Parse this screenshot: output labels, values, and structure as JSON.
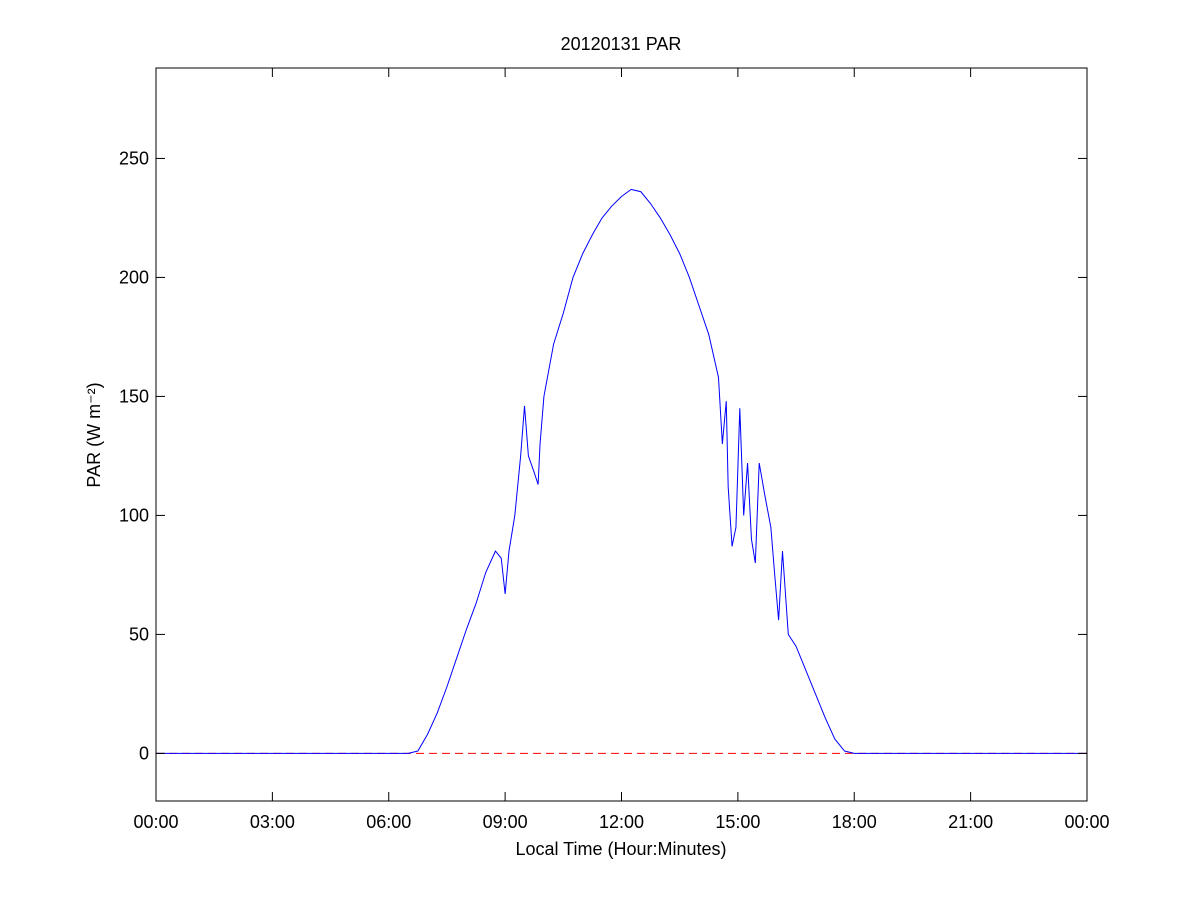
{
  "chart_data": {
    "type": "line",
    "title": "20120131 PAR",
    "xlabel": "Local Time (Hour:Minutes)",
    "ylabel": "PAR (W m⁻²)",
    "x": [
      0,
      6.5,
      6.75,
      7.0,
      7.25,
      7.5,
      7.75,
      8.0,
      8.25,
      8.5,
      8.75,
      8.9,
      9.0,
      9.1,
      9.25,
      9.4,
      9.5,
      9.6,
      9.75,
      9.85,
      9.9,
      10.0,
      10.25,
      10.5,
      10.75,
      11.0,
      11.25,
      11.5,
      11.75,
      12.0,
      12.25,
      12.5,
      12.75,
      13.0,
      13.25,
      13.5,
      13.75,
      14.0,
      14.25,
      14.5,
      14.6,
      14.7,
      14.75,
      14.85,
      14.95,
      15.05,
      15.15,
      15.25,
      15.35,
      15.45,
      15.55,
      15.7,
      15.85,
      15.95,
      16.05,
      16.15,
      16.3,
      16.5,
      16.75,
      17.0,
      17.25,
      17.5,
      17.75,
      18.0,
      24
    ],
    "values": [
      0,
      0,
      1,
      8,
      17,
      28,
      40,
      52,
      63,
      76,
      85,
      82,
      67,
      85,
      100,
      125,
      146,
      125,
      118,
      113,
      130,
      150,
      172,
      185,
      200,
      210,
      218,
      225,
      230,
      234,
      237,
      236,
      231,
      225,
      218,
      210,
      200,
      188,
      176,
      158,
      130,
      148,
      112,
      87,
      95,
      145,
      100,
      122,
      90,
      80,
      122,
      108,
      95,
      75,
      56,
      85,
      50,
      45,
      35,
      25,
      15,
      6,
      1,
      0,
      0
    ],
    "color": "#0000ff",
    "hline": {
      "value": 0,
      "color": "#ff0000"
    },
    "xlim": [
      0,
      24
    ],
    "ylim": [
      -20,
      288
    ],
    "xticks": [
      {
        "value": 0,
        "label": "00:00"
      },
      {
        "value": 3,
        "label": "03:00"
      },
      {
        "value": 6,
        "label": "06:00"
      },
      {
        "value": 9,
        "label": "09:00"
      },
      {
        "value": 12,
        "label": "12:00"
      },
      {
        "value": 15,
        "label": "15:00"
      },
      {
        "value": 18,
        "label": "18:00"
      },
      {
        "value": 21,
        "label": "21:00"
      },
      {
        "value": 24,
        "label": "00:00"
      }
    ],
    "yticks": [
      0,
      50,
      100,
      150,
      200,
      250
    ]
  }
}
